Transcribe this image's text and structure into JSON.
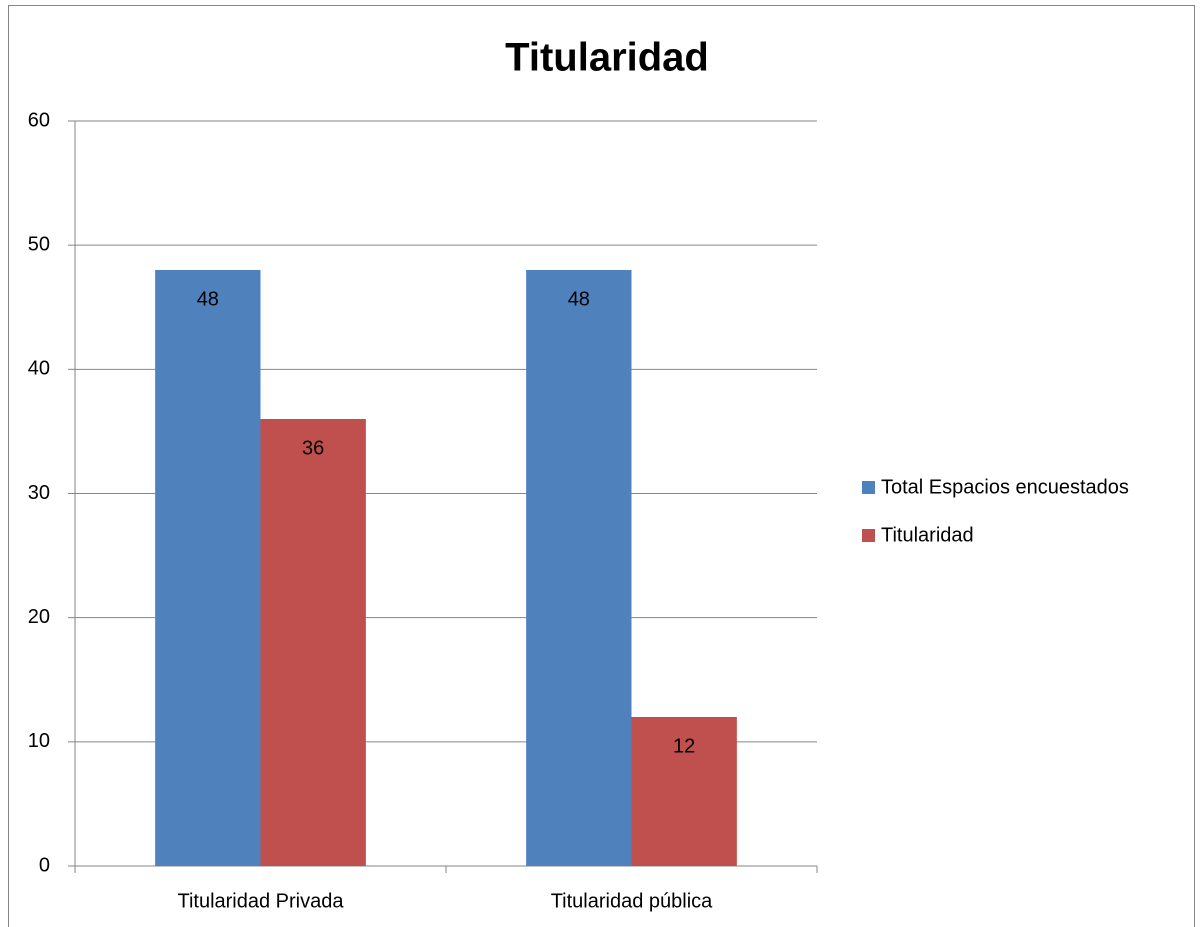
{
  "chart_data": {
    "type": "bar",
    "title": "Titularidad",
    "categories": [
      "Titularidad Privada",
      "Titularidad pública"
    ],
    "series": [
      {
        "name": "Total Espacios encuestados",
        "color": "#4f81bd",
        "values": [
          48,
          48
        ]
      },
      {
        "name": "Titularidad",
        "color": "#c0504d",
        "values": [
          36,
          12
        ]
      }
    ],
    "ylim": [
      0,
      60
    ],
    "yticks": [
      0,
      10,
      20,
      30,
      40,
      50,
      60
    ],
    "grid": true,
    "legend": "right",
    "data_labels": true
  }
}
